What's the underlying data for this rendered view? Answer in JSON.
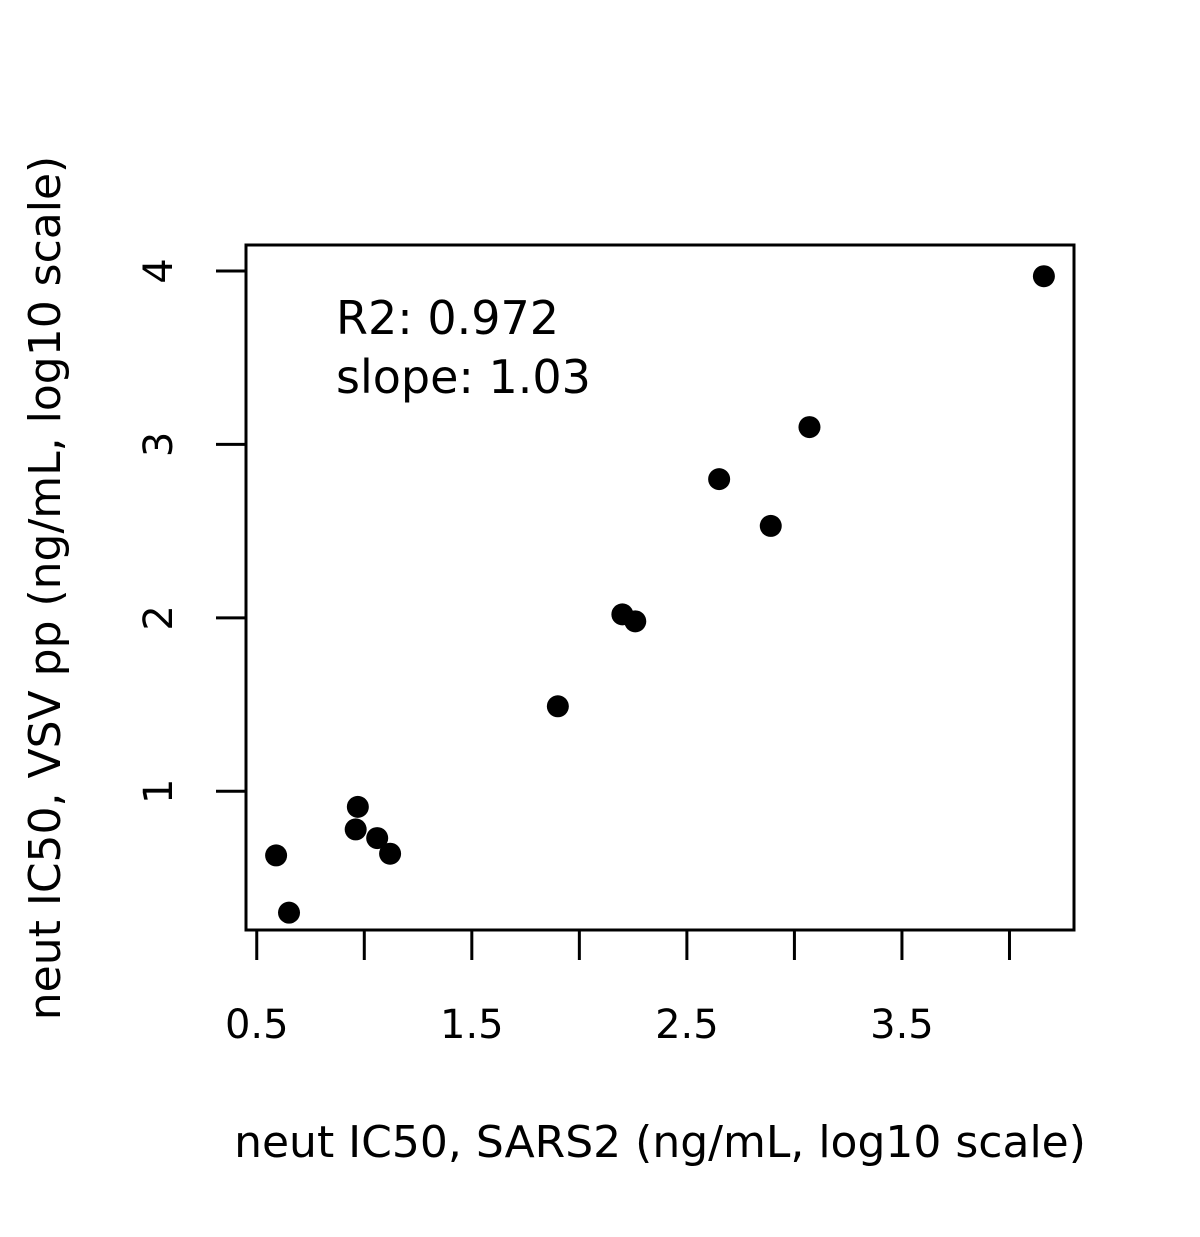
{
  "chart_data": {
    "type": "scatter",
    "title": "",
    "xlabel": "neut IC50, SARS2 (ng/mL, log10 scale)",
    "ylabel": "neut IC50, VSV pp (ng/mL, log10 scale)",
    "xlim": [
      0.45,
      4.3
    ],
    "ylim": [
      0.2,
      4.15
    ],
    "x_ticks": [
      0.5,
      1.0,
      1.5,
      2.0,
      2.5,
      3.0,
      3.5,
      4.0
    ],
    "x_tick_labels": [
      "0.5",
      "",
      "1.5",
      "",
      "2.5",
      "",
      "3.5",
      ""
    ],
    "y_ticks": [
      1,
      2,
      3,
      4
    ],
    "y_tick_labels": [
      "1",
      "2",
      "3",
      "4"
    ],
    "grid": false,
    "annotations": [
      "R2: 0.972",
      "slope: 1.03"
    ],
    "series": [
      {
        "points": [
          {
            "x": 0.59,
            "y": 0.63
          },
          {
            "x": 0.65,
            "y": 0.3
          },
          {
            "x": 0.96,
            "y": 0.78
          },
          {
            "x": 0.97,
            "y": 0.91
          },
          {
            "x": 1.06,
            "y": 0.73
          },
          {
            "x": 1.12,
            "y": 0.64
          },
          {
            "x": 1.9,
            "y": 1.49
          },
          {
            "x": 2.2,
            "y": 2.02
          },
          {
            "x": 2.26,
            "y": 1.98
          },
          {
            "x": 2.65,
            "y": 2.8
          },
          {
            "x": 2.89,
            "y": 2.53
          },
          {
            "x": 3.07,
            "y": 3.1
          },
          {
            "x": 4.16,
            "y": 3.97
          }
        ]
      }
    ]
  }
}
